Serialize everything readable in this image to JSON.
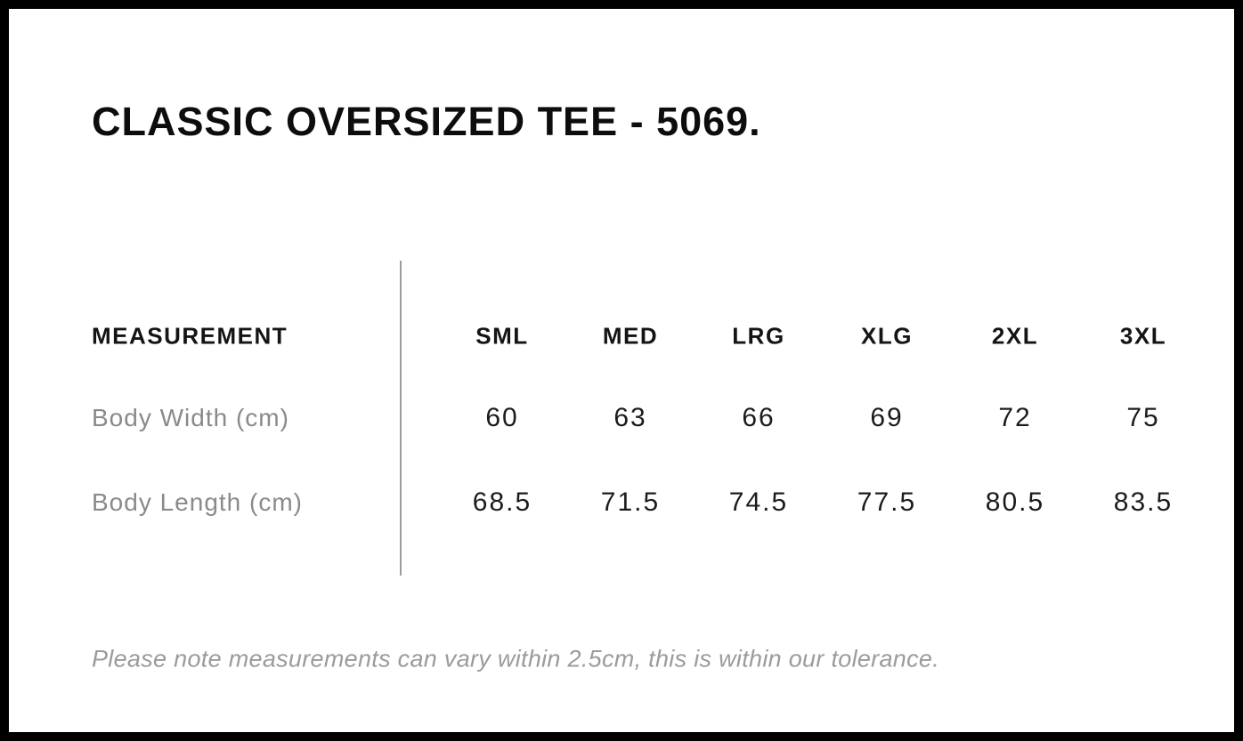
{
  "page": {
    "title": "CLASSIC OVERSIZED TEE - 5069."
  },
  "size_chart": {
    "measurement_label": "MEASUREMENT",
    "sizes": [
      "SML",
      "MED",
      "LRG",
      "XLG",
      "2XL",
      "3XL"
    ],
    "rows": [
      {
        "label": "Body Width (cm)",
        "values": [
          "60",
          "63",
          "66",
          "69",
          "72",
          "75"
        ]
      },
      {
        "label": "Body Length (cm)",
        "values": [
          "68.5",
          "71.5",
          "74.5",
          "77.5",
          "80.5",
          "83.5"
        ]
      }
    ],
    "note": "Please note measurements can vary within 2.5cm, this is within our tolerance."
  },
  "colors": {
    "frame_border": "#000000",
    "title_text": "#0d0d0d",
    "header_text": "#141414",
    "value_text": "#1c1c1c",
    "label_gray": "#8a8a8a",
    "note_gray": "#9b9b9b",
    "divider_gray": "#9c9c9c",
    "background": "#ffffff"
  }
}
